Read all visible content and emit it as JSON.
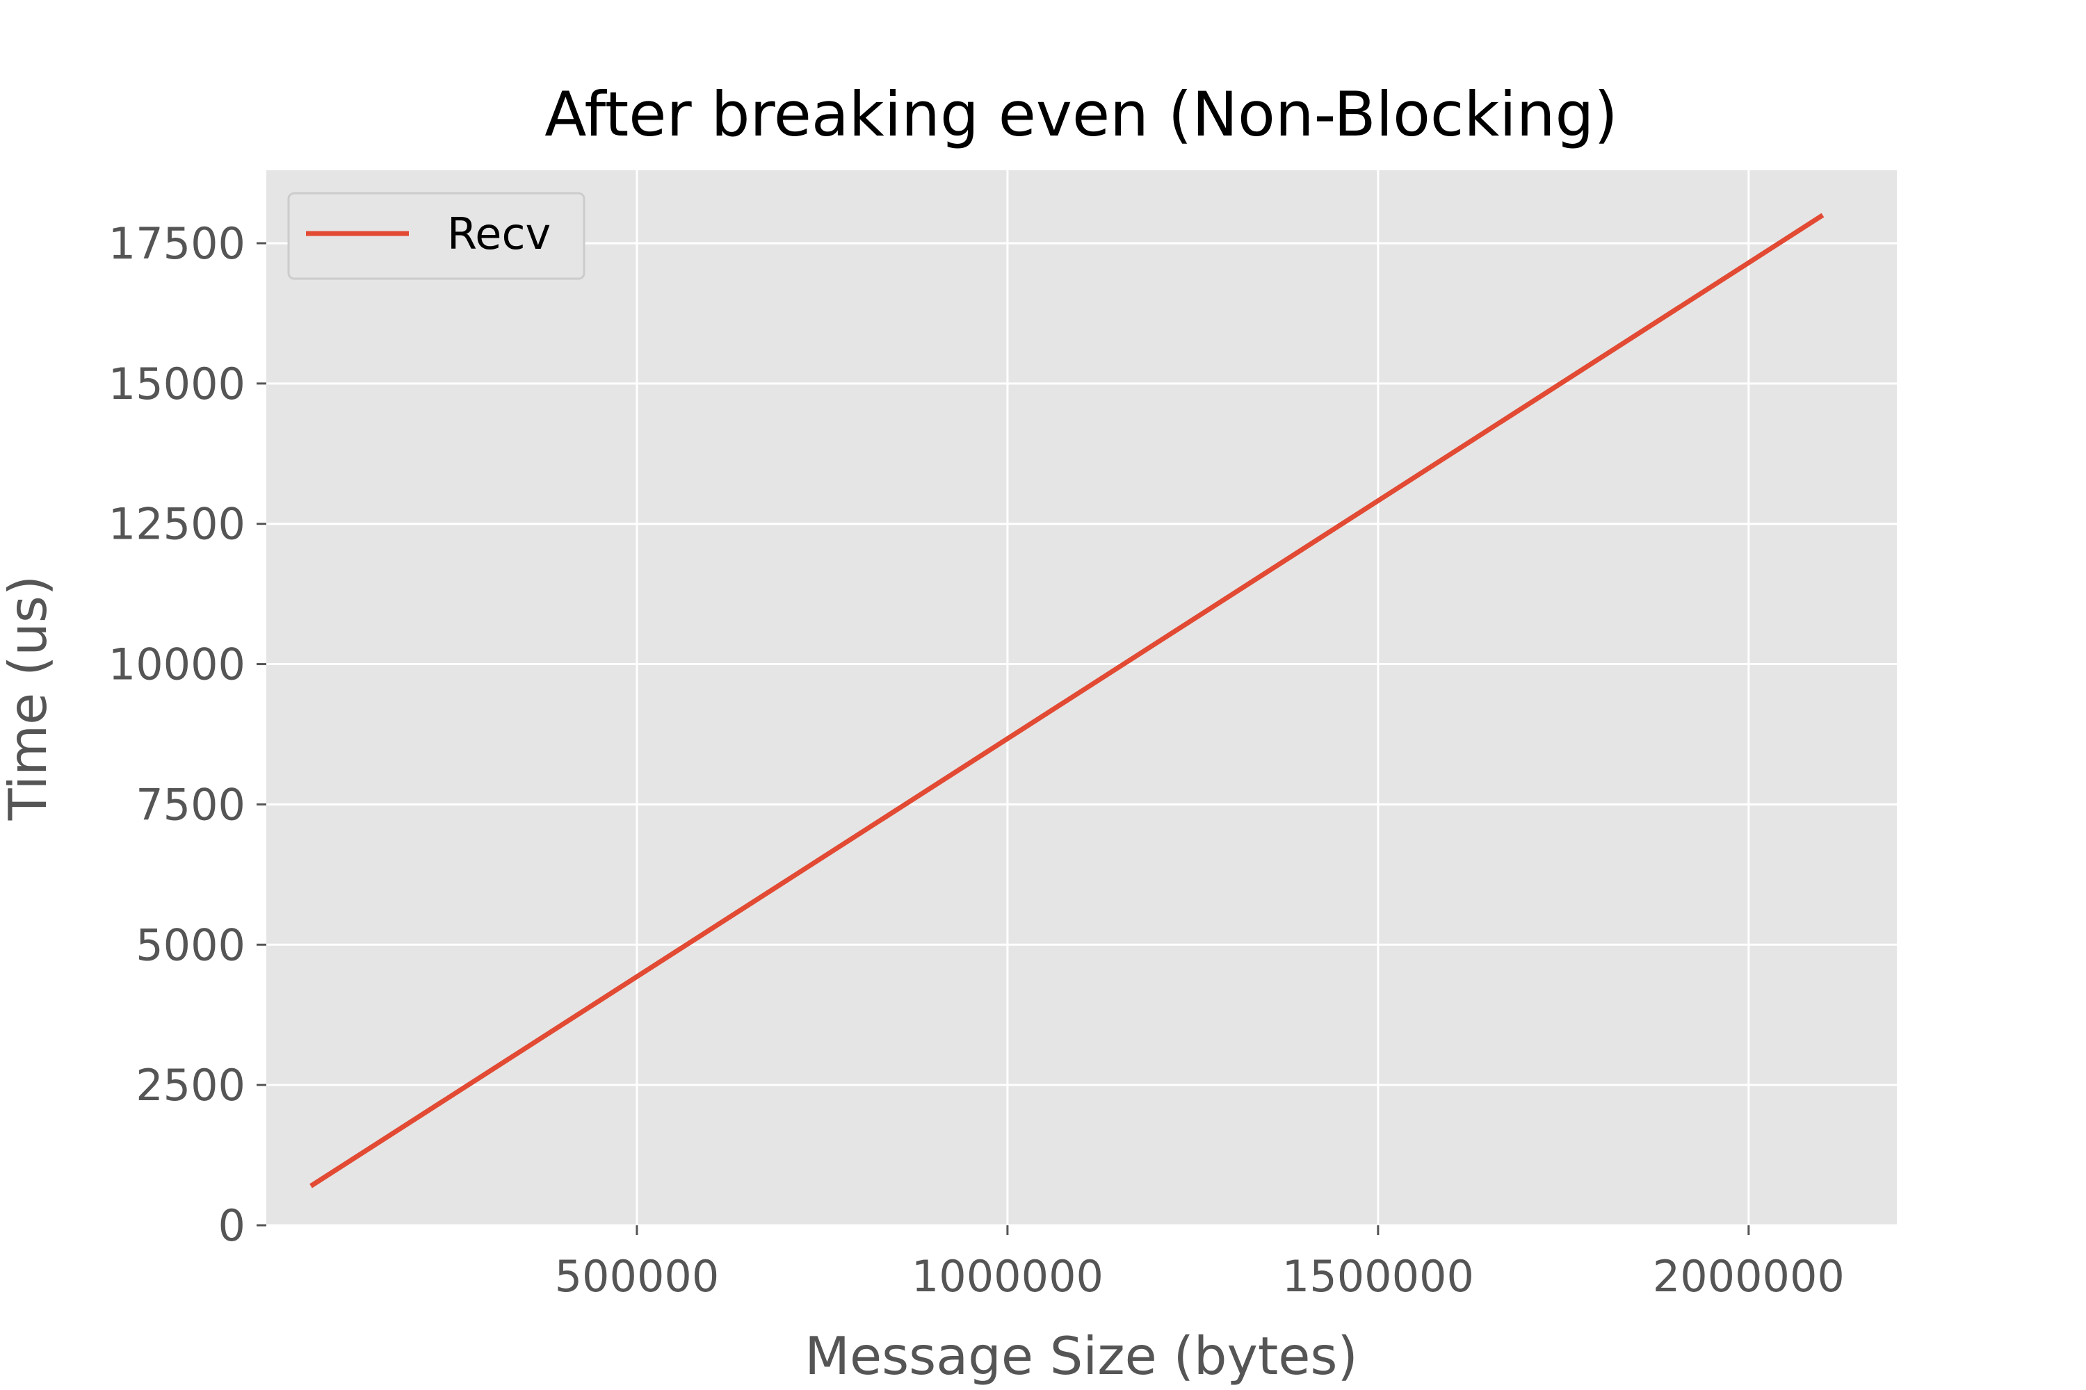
{
  "chart_data": {
    "type": "line",
    "title": "After breaking even (Non-Blocking)",
    "xlabel": "Message Size (bytes)",
    "ylabel": "Time (us)",
    "xlim": [
      0,
      2200000
    ],
    "ylim": [
      0,
      18800
    ],
    "x_ticks": [
      500000,
      1000000,
      1500000,
      2000000
    ],
    "y_ticks": [
      0,
      2500,
      5000,
      7500,
      10000,
      12500,
      15000,
      17500
    ],
    "grid": true,
    "legend_position": "top-left",
    "series": [
      {
        "name": "Recv",
        "color": "#E24A33",
        "x": [
          60000,
          2100000
        ],
        "y": [
          700,
          18000
        ]
      }
    ],
    "colors": {
      "plot_background": "#E5E5E5",
      "grid": "#FFFFFF",
      "tick_text": "#555555",
      "title_text": "#000000"
    }
  }
}
